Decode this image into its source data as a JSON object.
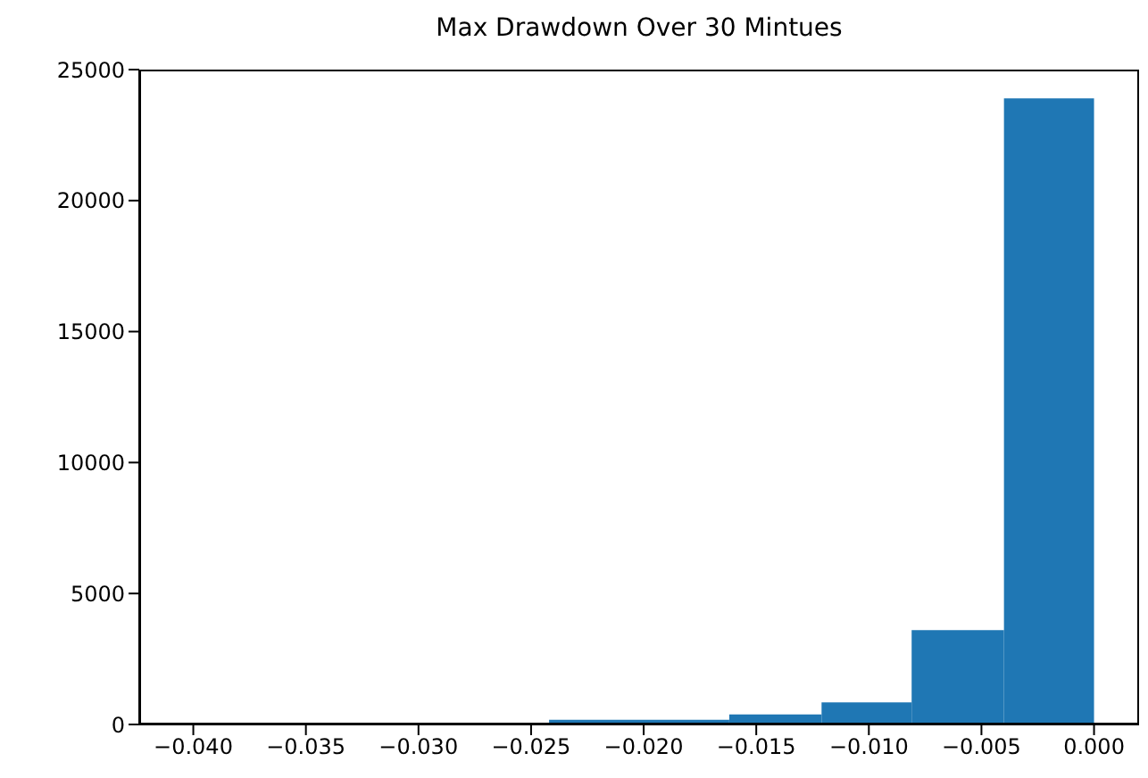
{
  "chart_data": {
    "type": "histogram",
    "title": "Max Drawdown Over 30 Mintues",
    "bins": [
      -0.0242,
      -0.0202,
      -0.0162,
      -0.0121,
      -0.0081,
      -0.004,
      0.0
    ],
    "values": [
      180,
      180,
      380,
      840,
      3600,
      23900
    ],
    "color": "#1f77b4",
    "xlim": [
      -0.0424,
      0.002
    ],
    "xticks": [
      {
        "value": -0.04,
        "label": "−0.040"
      },
      {
        "value": -0.035,
        "label": "−0.035"
      },
      {
        "value": -0.03,
        "label": "−0.030"
      },
      {
        "value": -0.025,
        "label": "−0.025"
      },
      {
        "value": -0.02,
        "label": "−0.020"
      },
      {
        "value": -0.015,
        "label": "−0.015"
      },
      {
        "value": -0.01,
        "label": "−0.010"
      },
      {
        "value": -0.005,
        "label": "−0.005"
      },
      {
        "value": 0.0,
        "label": "0.000"
      }
    ],
    "ylim": [
      0,
      25000
    ],
    "yticks": [
      0,
      5000,
      10000,
      15000,
      20000,
      25000
    ],
    "grid": false
  }
}
